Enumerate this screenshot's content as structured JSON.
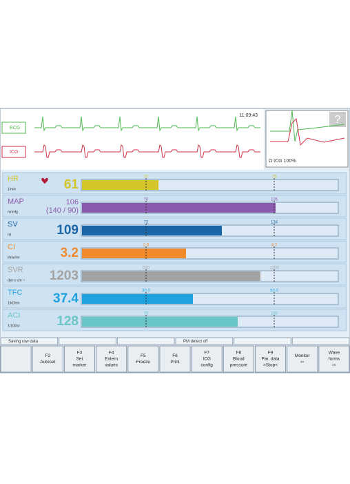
{
  "header": {
    "time": "11:09:43"
  },
  "waveforms": [
    {
      "label": "ECG",
      "color": "#4cb84c"
    },
    {
      "label": "ICG",
      "color": "#d03048"
    }
  ],
  "thumbnail": {
    "help": "?",
    "label": "Ω ICG 100%"
  },
  "parameters": [
    {
      "name": "HR",
      "unit": "1/min",
      "value": "61",
      "color": "#d4c62a",
      "markers": [
        "70",
        "75"
      ]
    },
    {
      "name": "MAP",
      "unit": "mmHg",
      "value": "106",
      "value_detail": "(140 / 90)",
      "color": "#8a5aae",
      "markers": [
        "70",
        "105"
      ]
    },
    {
      "name": "SV",
      "unit": "ml",
      "value": "109",
      "color": "#1a66a6",
      "markers": [
        "72",
        "134"
      ]
    },
    {
      "name": "CI",
      "unit": "l/min/m²",
      "value": "3.2",
      "color": "#f08a2c",
      "markers": [
        "2.5",
        "4.7"
      ]
    },
    {
      "name": "SVR",
      "unit": "dyn·s·cm⁻⁵",
      "value": "1203",
      "color": "#a3a3a3",
      "markers": [
        "510",
        "1200"
      ]
    },
    {
      "name": "TFC",
      "unit": "1/kOhm",
      "value": "37.4",
      "color": "#1ea2e0",
      "markers": [
        "30.0",
        "50.0"
      ]
    },
    {
      "name": "ACI",
      "unit": "1/100/s²",
      "value": "128",
      "color": "#6ac6c6",
      "markers": [
        "70",
        "150"
      ]
    }
  ],
  "status": [
    "Saving raw data",
    "",
    "",
    "PM detect off",
    "",
    ""
  ],
  "buttons": [
    {
      "lines": []
    },
    {
      "lines": [
        "F2",
        "Autoset"
      ]
    },
    {
      "lines": [
        "F3",
        "Set",
        "marker"
      ]
    },
    {
      "lines": [
        "F4",
        "Extern",
        "values"
      ]
    },
    {
      "lines": [
        "F5",
        "Freeze"
      ]
    },
    {
      "lines": [
        "F6",
        "Print"
      ]
    },
    {
      "lines": [
        "F7",
        "ICG",
        "config"
      ]
    },
    {
      "lines": [
        "F8",
        "Blood",
        "pressure"
      ]
    },
    {
      "lines": [
        "F9",
        "Par. data",
        ">Stop<"
      ]
    },
    {
      "lines": [
        "Monitor",
        "⇦"
      ]
    },
    {
      "lines": [
        "Wave",
        "forms",
        "⇨"
      ]
    }
  ]
}
